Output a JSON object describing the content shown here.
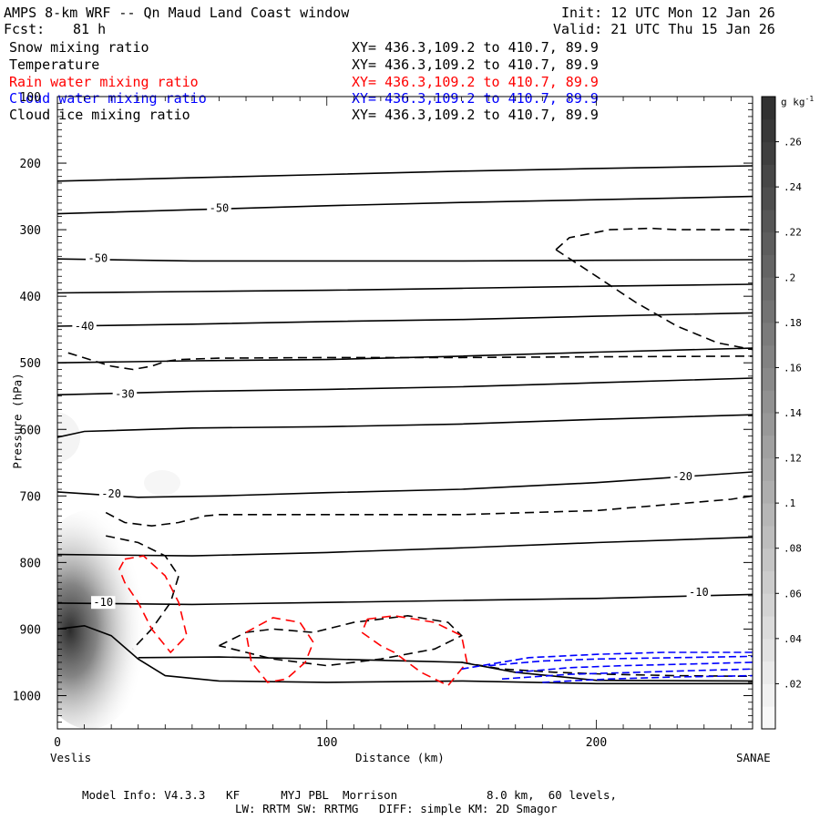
{
  "header": {
    "title": "AMPS 8-km WRF -- Qn Maud Land Coast window",
    "fcst_label": "Fcst:",
    "fcst_value": "81 h",
    "init": "Init: 12 UTC Mon 12 Jan 26",
    "valid": "Valid: 21 UTC Thu 15 Jan 26"
  },
  "fields": [
    {
      "name": "Snow mixing ratio",
      "xy": "XY= 436.3,109.2 to 410.7, 89.9",
      "color": "#000000"
    },
    {
      "name": "Temperature",
      "xy": "XY= 436.3,109.2 to 410.7, 89.9",
      "color": "#000000"
    },
    {
      "name": "Rain water mixing ratio",
      "xy": "XY= 436.3,109.2 to 410.7, 89.9",
      "color": "#ff0000"
    },
    {
      "name": "Cloud water mixing ratio",
      "xy": "XY= 436.3,109.2 to 410.7, 89.9",
      "color": "#0000ff"
    },
    {
      "name": "Cloud ice mixing ratio",
      "xy": "XY= 436.3,109.2 to 410.7, 89.9",
      "color": "#000000"
    }
  ],
  "footer": {
    "line1": "Model Info: V4.3.3   KF      MYJ PBL  Morrison             8.0 km,  60 levels,",
    "line2": "LW: RRTM SW: RRTMG   DIFF: simple KM: 2D Smagor"
  },
  "chart_data": {
    "type": "cross-section contour",
    "xlabel": "Distance (km)",
    "ylabel": "Pressure (hPa)",
    "x_ticks": [
      0,
      100,
      200
    ],
    "y_ticks": [
      100,
      200,
      300,
      400,
      500,
      600,
      700,
      800,
      900,
      1000
    ],
    "xlim": [
      0,
      258
    ],
    "ylim": [
      1050,
      100
    ],
    "left_endpoint": "Veslis",
    "right_endpoint": "SANAE",
    "colorbar": {
      "unit": "g kg",
      "unit_exponent": "-1",
      "ticks": [
        ".02",
        ".04",
        ".06",
        ".08",
        ".1",
        ".12",
        ".14",
        ".16",
        ".18",
        ".2",
        ".22",
        ".24",
        ".26"
      ],
      "levels": 28,
      "max": 0.28
    },
    "temperature_labels": [
      {
        "text": "-50",
        "x": 60,
        "p": 268
      },
      {
        "text": "-50",
        "x": 15,
        "p": 343
      },
      {
        "text": "-40",
        "x": 10,
        "p": 445
      },
      {
        "text": "-30",
        "x": 25,
        "p": 547
      },
      {
        "text": "-20",
        "x": 20,
        "p": 697
      },
      {
        "text": "-20",
        "x": 232,
        "p": 671
      },
      {
        "text": "-10",
        "x": 17,
        "p": 860
      },
      {
        "text": "-10",
        "x": 238,
        "p": 845
      }
    ],
    "temperature_isotherms": [
      {
        "x": [
          0,
          50,
          100,
          150,
          200,
          258
        ],
        "p": [
          227,
          222,
          217,
          212,
          208,
          204
        ]
      },
      {
        "x": [
          0,
          50,
          100,
          150,
          200,
          258
        ],
        "p": [
          276,
          270,
          264,
          259,
          255,
          250
        ]
      },
      {
        "x": [
          0,
          50,
          100,
          150,
          200,
          258
        ],
        "p": [
          344,
          347,
          347,
          347,
          346,
          345
        ]
      },
      {
        "x": [
          0,
          50,
          100,
          150,
          200,
          258
        ],
        "p": [
          395,
          393,
          391,
          388,
          385,
          382
        ]
      },
      {
        "x": [
          0,
          50,
          100,
          150,
          200,
          258
        ],
        "p": [
          445,
          442,
          438,
          435,
          430,
          425
        ]
      },
      {
        "x": [
          0,
          50,
          100,
          150,
          200,
          258
        ],
        "p": [
          500,
          497,
          495,
          490,
          484,
          478
        ]
      },
      {
        "x": [
          0,
          50,
          100,
          150,
          200,
          258
        ],
        "p": [
          548,
          543,
          540,
          536,
          530,
          523
        ]
      },
      {
        "x": [
          0,
          10,
          50,
          100,
          150,
          200,
          258
        ],
        "p": [
          612,
          603,
          598,
          596,
          592,
          585,
          578
        ]
      },
      {
        "x": [
          0,
          30,
          60,
          100,
          150,
          200,
          258
        ],
        "p": [
          694,
          702,
          700,
          695,
          690,
          680,
          664
        ]
      },
      {
        "x": [
          0,
          50,
          100,
          150,
          200,
          258
        ],
        "p": [
          788,
          790,
          785,
          778,
          770,
          762
        ]
      },
      {
        "x": [
          0,
          50,
          100,
          150,
          200,
          258
        ],
        "p": [
          861,
          863,
          860,
          857,
          854,
          848
        ]
      },
      {
        "x": [
          30,
          60,
          100,
          150,
          170,
          200,
          258
        ],
        "p": [
          943,
          942,
          945,
          950,
          965,
          977,
          978
        ]
      },
      {
        "x": [
          0,
          10,
          20,
          30,
          40,
          60,
          100,
          150,
          200,
          258
        ],
        "p": [
          900,
          895,
          910,
          945,
          970,
          978,
          980,
          978,
          982,
          982
        ]
      }
    ],
    "rain_water_contours": [
      {
        "x": [
          25,
          32,
          40,
          45,
          48,
          42,
          35,
          30,
          25,
          23,
          25
        ],
        "p": [
          795,
          790,
          820,
          860,
          910,
          935,
          900,
          860,
          830,
          810,
          795
        ]
      },
      {
        "x": [
          70,
          80,
          90,
          95,
          92,
          85,
          78,
          72,
          70
        ],
        "p": [
          905,
          883,
          890,
          920,
          950,
          975,
          980,
          950,
          905
        ]
      },
      {
        "x": [
          115,
          125,
          140,
          150,
          152,
          145,
          135,
          125,
          120,
          113,
          115
        ],
        "p": [
          885,
          880,
          890,
          910,
          950,
          985,
          965,
          935,
          925,
          905,
          885
        ]
      }
    ],
    "cloud_water_contours": [
      {
        "x": [
          150,
          175,
          200,
          225,
          258
        ],
        "p": [
          960,
          943,
          938,
          935,
          935
        ]
      },
      {
        "x": [
          160,
          180,
          200,
          230,
          258
        ],
        "p": [
          955,
          948,
          945,
          943,
          941
        ]
      },
      {
        "x": [
          170,
          190,
          210,
          240,
          258
        ],
        "p": [
          965,
          958,
          955,
          952,
          950
        ]
      },
      {
        "x": [
          165,
          190,
          215,
          240,
          258
        ],
        "p": [
          975,
          968,
          965,
          962,
          960
        ]
      },
      {
        "x": [
          180,
          205,
          230,
          258
        ],
        "p": [
          980,
          975,
          972,
          970
        ]
      }
    ],
    "cloud_ice_contours": [
      {
        "x": [
          4,
          12,
          20,
          28,
          35,
          40,
          45,
          60,
          100,
          150,
          200,
          258
        ],
        "p": [
          485,
          495,
          505,
          510,
          505,
          498,
          495,
          493,
          492,
          492,
          491,
          490
        ]
      },
      {
        "x": [
          18,
          25,
          35,
          45,
          55,
          60,
          100,
          150,
          200,
          250,
          258
        ],
        "p": [
          725,
          740,
          745,
          740,
          730,
          728,
          728,
          728,
          722,
          705,
          700
        ]
      },
      {
        "x": [
          185,
          190,
          205,
          220,
          230,
          245,
          258
        ],
        "p": [
          330,
          312,
          300,
          298,
          300,
          300,
          300
        ]
      },
      {
        "x": [
          185,
          200,
          215,
          230,
          245,
          258
        ],
        "p": [
          330,
          370,
          410,
          445,
          470,
          480
        ]
      },
      {
        "x": [
          18,
          30,
          40,
          45,
          42,
          35,
          28
        ],
        "p": [
          760,
          770,
          790,
          820,
          860,
          900,
          930
        ]
      },
      {
        "x": [
          60,
          70,
          80,
          95,
          110,
          130,
          145,
          150,
          140,
          120,
          100,
          80,
          65,
          60
        ],
        "p": [
          925,
          905,
          900,
          905,
          890,
          880,
          890,
          910,
          930,
          945,
          955,
          945,
          930,
          925
        ]
      },
      {
        "x": [
          150,
          165,
          185,
          205,
          230,
          258
        ],
        "p": [
          950,
          960,
          965,
          968,
          970,
          971
        ]
      }
    ]
  }
}
